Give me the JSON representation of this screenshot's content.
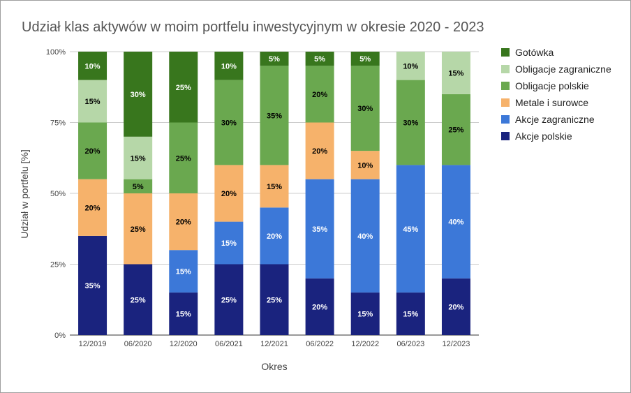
{
  "chart_data": {
    "type": "bar",
    "stacked": true,
    "title": "Udział klas aktywów w moim portfelu inwestycyjnym w okresie 2020 - 2023",
    "xlabel": "Okres",
    "ylabel": "Udział w portfelu [%]",
    "ylim": [
      0,
      100
    ],
    "y_ticks": [
      "0%",
      "25%",
      "50%",
      "75%",
      "100%"
    ],
    "grid": true,
    "legend_position": "right",
    "categories": [
      "12/2019",
      "06/2020",
      "12/2020",
      "06/2021",
      "12/2021",
      "06/2022",
      "12/2022",
      "06/2023",
      "12/2023"
    ],
    "series": [
      {
        "name": "Akcje polskie",
        "color": "#1a237e",
        "label_color": "#ffffff",
        "values": [
          35,
          25,
          15,
          25,
          25,
          20,
          15,
          15,
          20
        ]
      },
      {
        "name": "Akcje zagraniczne",
        "color": "#3c78d8",
        "label_color": "#ffffff",
        "values": [
          0,
          0,
          15,
          15,
          20,
          35,
          40,
          45,
          40
        ]
      },
      {
        "name": "Metale i surowce",
        "color": "#f6b26b",
        "label_color": "#000000",
        "values": [
          20,
          25,
          20,
          20,
          15,
          20,
          10,
          0,
          0
        ]
      },
      {
        "name": "Obligacje polskie",
        "color": "#6aa84f",
        "label_color": "#000000",
        "values": [
          20,
          5,
          25,
          30,
          35,
          20,
          30,
          30,
          25
        ]
      },
      {
        "name": "Obligacje zagraniczne",
        "color": "#b6d7a8",
        "label_color": "#000000",
        "values": [
          15,
          15,
          0,
          0,
          0,
          0,
          0,
          10,
          15
        ]
      },
      {
        "name": "Gotówka",
        "color": "#38761d",
        "label_color": "#ffffff",
        "values": [
          10,
          30,
          25,
          10,
          5,
          5,
          5,
          0,
          0
        ]
      }
    ],
    "legend_order": [
      "Gotówka",
      "Obligacje zagraniczne",
      "Obligacje polskie",
      "Metale i surowce",
      "Akcje zagraniczne",
      "Akcje polskie"
    ]
  }
}
